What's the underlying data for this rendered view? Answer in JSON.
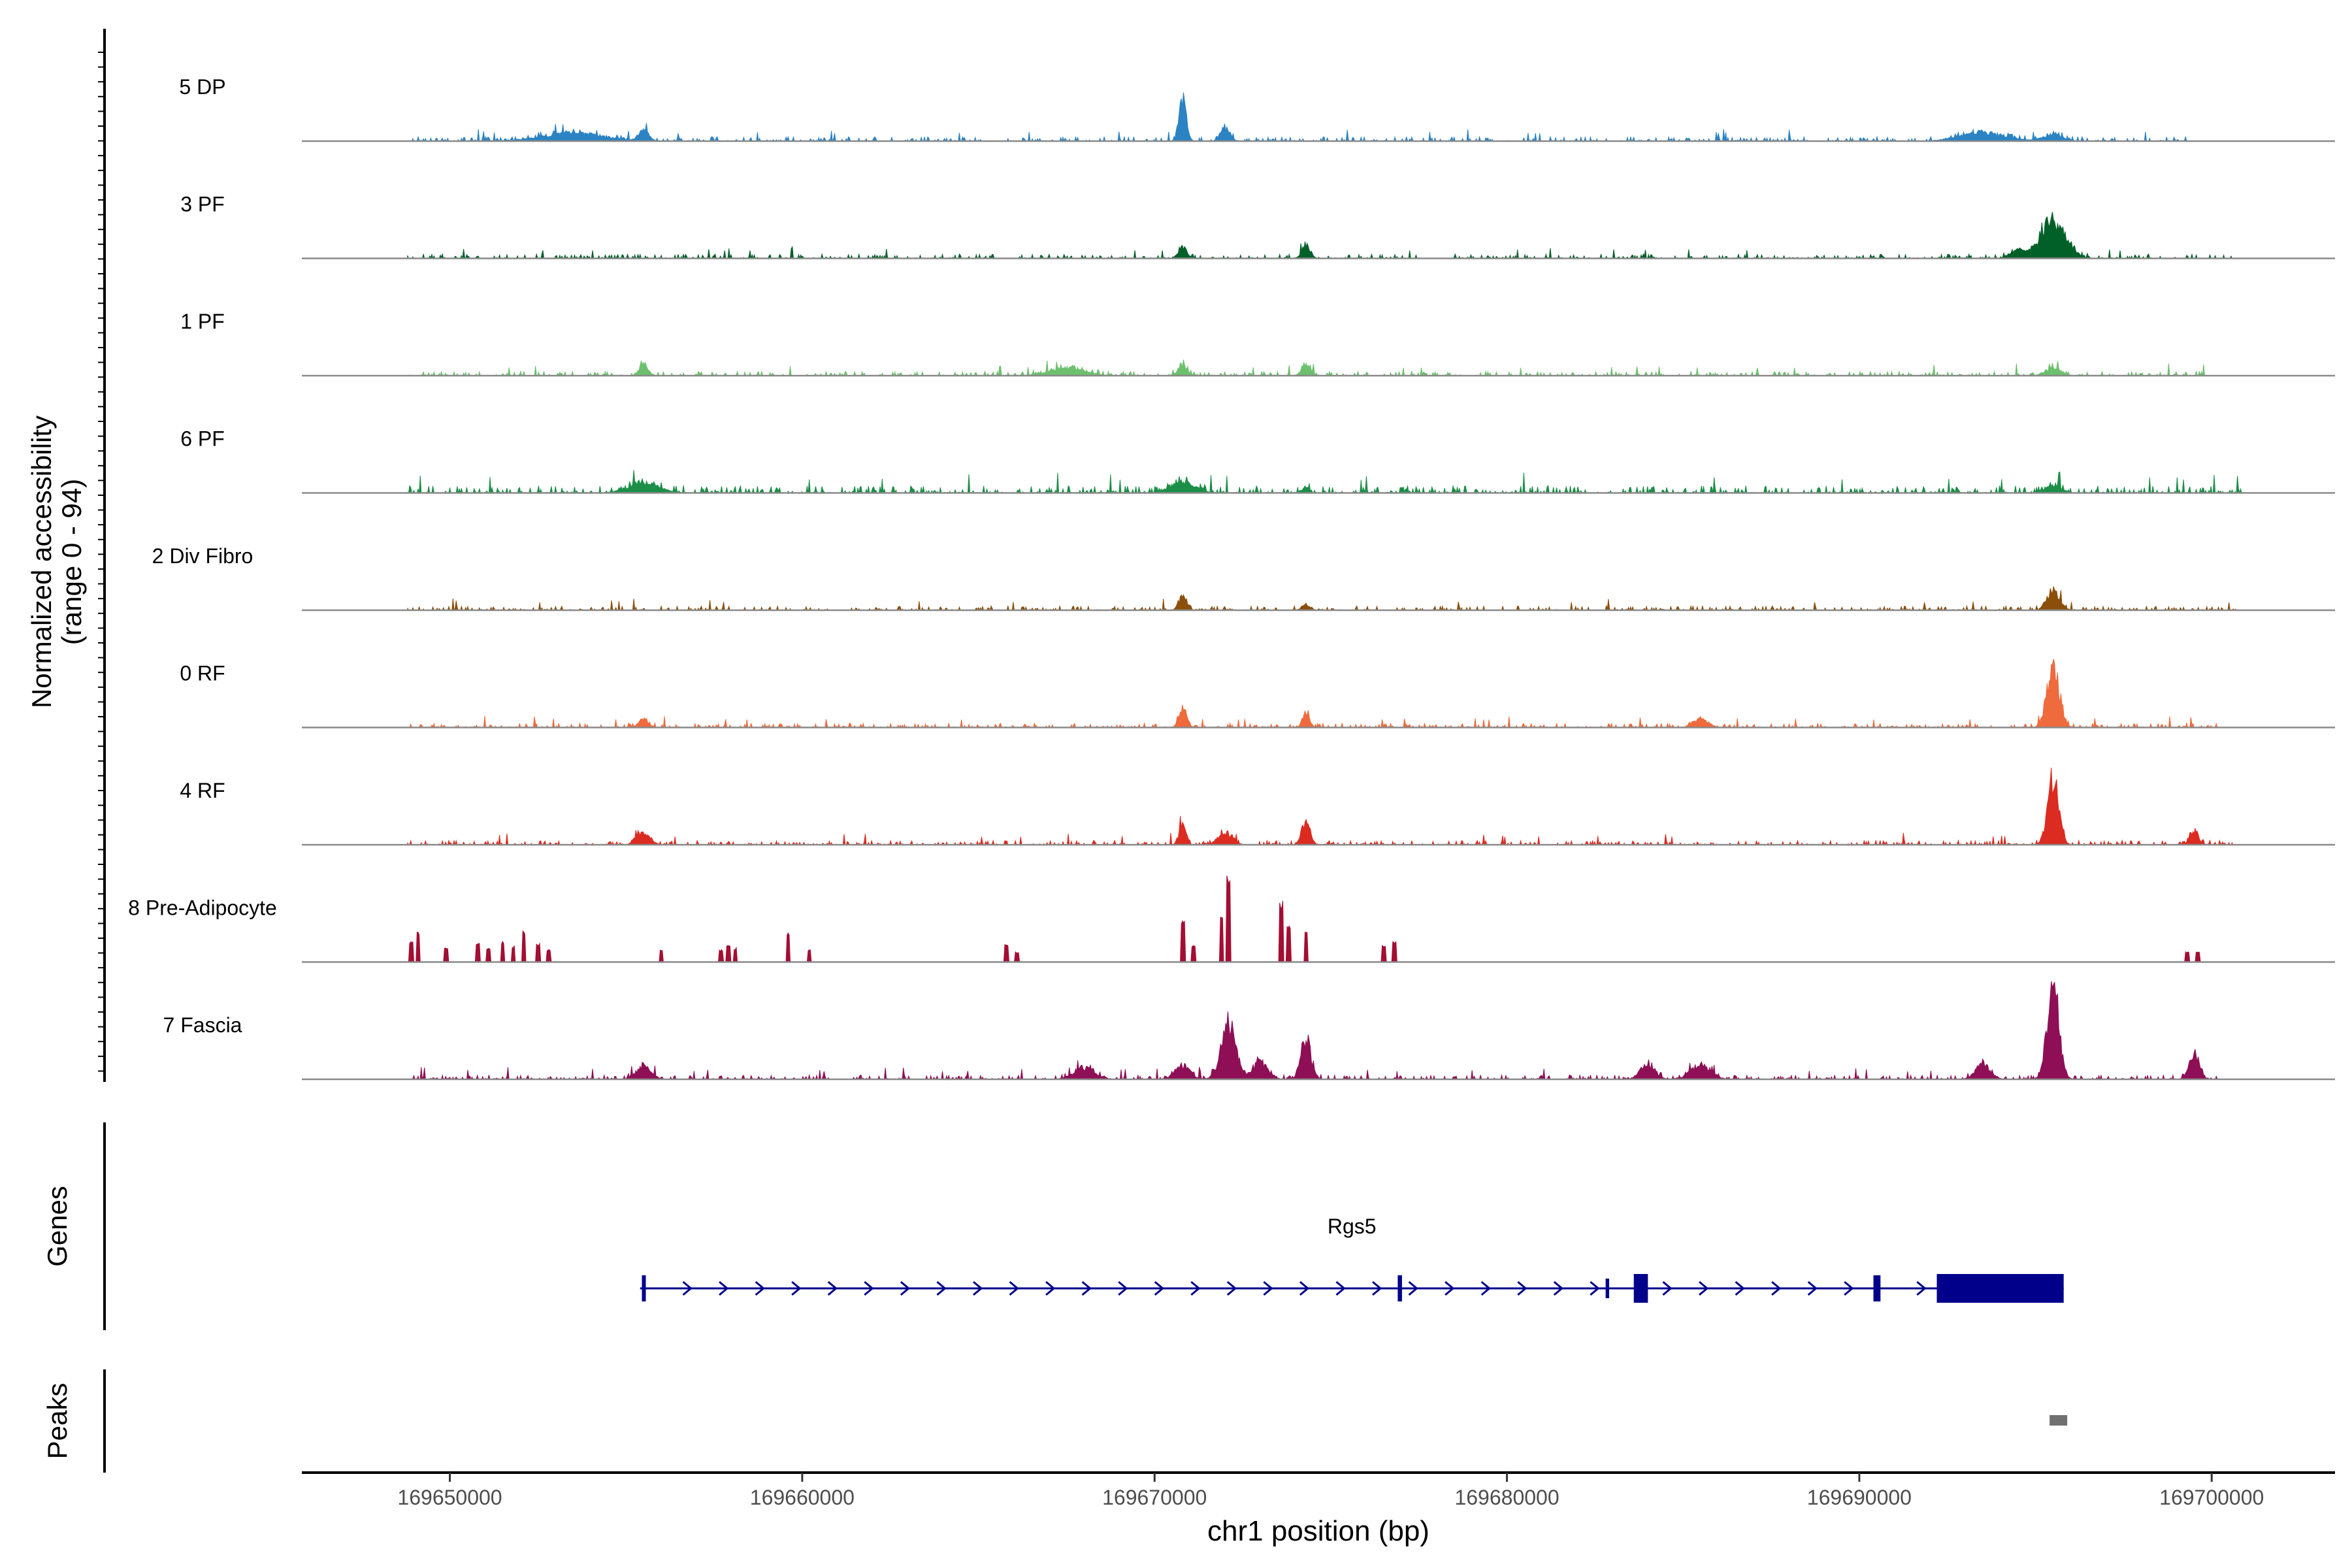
{
  "chart_data": {
    "type": "area",
    "title": "",
    "ylabel_line1": "Normalized accessibility",
    "ylabel_line2": "(range 0 - 94)",
    "xlabel": "chr1 position (bp)",
    "xlim": [
      169645800,
      169703500
    ],
    "xticks": [
      169650000,
      169660000,
      169670000,
      169680000,
      169690000,
      169700000
    ],
    "xtick_labels": [
      "169650000",
      "169660000",
      "169670000",
      "169680000",
      "169690000",
      "169700000"
    ],
    "y_range": [
      0,
      94
    ],
    "tracks": [
      {
        "name": "5 DP",
        "color": "#2b83c3",
        "data_start": 169648800,
        "data_end": 169699500,
        "peaks": [
          [
            169670800,
            40,
            140
          ],
          [
            169672000,
            14,
            180
          ],
          [
            169655500,
            10,
            200
          ],
          [
            169653500,
            8,
            1200
          ],
          [
            169693500,
            8,
            900
          ],
          [
            169695500,
            6,
            400
          ]
        ],
        "noise": 3,
        "seed": 11
      },
      {
        "name": "3 PF",
        "color": "#006028",
        "data_start": 169648800,
        "data_end": 169700600,
        "peaks": [
          [
            169695500,
            38,
            500
          ],
          [
            169674300,
            14,
            160
          ],
          [
            169670800,
            12,
            160
          ],
          [
            169694500,
            8,
            300
          ]
        ],
        "noise": 3,
        "seed": 23
      },
      {
        "name": "1 PF",
        "color": "#6cc06e",
        "data_start": 169648800,
        "data_end": 169699800,
        "peaks": [
          [
            169655500,
            12,
            180
          ],
          [
            169674300,
            12,
            180
          ],
          [
            169670800,
            10,
            200
          ],
          [
            169667500,
            8,
            700
          ],
          [
            169695500,
            8,
            300
          ]
        ],
        "noise": 3,
        "seed": 37
      },
      {
        "name": "6 PF",
        "color": "#1b8e47",
        "data_start": 169648800,
        "data_end": 169700900,
        "peaks": [
          [
            169655500,
            10,
            600
          ],
          [
            169670800,
            10,
            500
          ],
          [
            169695500,
            8,
            300
          ],
          [
            169674300,
            6,
            120
          ]
        ],
        "noise": 5,
        "seed": 41
      },
      {
        "name": "2 Div Fibro",
        "color": "#8b4f0a",
        "data_start": 169648800,
        "data_end": 169700800,
        "peaks": [
          [
            169695500,
            18,
            260
          ],
          [
            169670800,
            14,
            160
          ],
          [
            169674300,
            6,
            160
          ]
        ],
        "noise": 3,
        "seed": 53
      },
      {
        "name": "0 RF",
        "color": "#ef6a3c",
        "data_start": 169648800,
        "data_end": 169700200,
        "peaks": [
          [
            169695500,
            60,
            240
          ],
          [
            169670800,
            18,
            160
          ],
          [
            169674300,
            14,
            140
          ],
          [
            169655500,
            8,
            200
          ],
          [
            169685500,
            8,
            300
          ]
        ],
        "noise": 3,
        "seed": 67
      },
      {
        "name": "4 RF",
        "color": "#dc2b20",
        "data_start": 169648800,
        "data_end": 169700600,
        "peaks": [
          [
            169695500,
            66,
            220
          ],
          [
            169674300,
            24,
            160
          ],
          [
            169670800,
            18,
            140
          ],
          [
            169699500,
            14,
            160
          ],
          [
            169655500,
            12,
            260
          ],
          [
            169672000,
            12,
            280
          ]
        ],
        "noise": 3,
        "seed": 71
      },
      {
        "name": "8 Pre-Adipocyte",
        "color": "#a30e33",
        "data_start": 169648800,
        "data_end": 169700000,
        "bars": [
          [
            169648900,
            20
          ],
          [
            169649100,
            30
          ],
          [
            169649900,
            14
          ],
          [
            169650800,
            18
          ],
          [
            169651100,
            14
          ],
          [
            169651500,
            20
          ],
          [
            169651800,
            16
          ],
          [
            169652100,
            30
          ],
          [
            169652500,
            18
          ],
          [
            169652800,
            12
          ],
          [
            169656000,
            12
          ],
          [
            169657700,
            12
          ],
          [
            169657900,
            18
          ],
          [
            169658100,
            14
          ],
          [
            169659600,
            30
          ],
          [
            169660200,
            12
          ],
          [
            169665800,
            18
          ],
          [
            169666100,
            10
          ],
          [
            169670800,
            40
          ],
          [
            169671100,
            16
          ],
          [
            169671900,
            46
          ],
          [
            169672100,
            84
          ],
          [
            169673600,
            60
          ],
          [
            169673800,
            36
          ],
          [
            169674300,
            30
          ],
          [
            169676500,
            16
          ],
          [
            169676800,
            20
          ],
          [
            169699300,
            10
          ],
          [
            169699600,
            10
          ]
        ],
        "noise": 0,
        "seed": 83
      },
      {
        "name": "7 Fascia",
        "color": "#8e0f55",
        "data_start": 169648800,
        "data_end": 169700200,
        "peaks": [
          [
            169695500,
            90,
            240
          ],
          [
            169672100,
            54,
            300
          ],
          [
            169674300,
            40,
            200
          ],
          [
            169673000,
            16,
            300
          ],
          [
            169670800,
            14,
            300
          ],
          [
            169699500,
            24,
            200
          ],
          [
            169685500,
            14,
            400
          ],
          [
            169684000,
            14,
            300
          ],
          [
            169693500,
            14,
            300
          ],
          [
            169655500,
            12,
            300
          ],
          [
            169668000,
            12,
            400
          ]
        ],
        "noise": 3,
        "seed": 97
      }
    ],
    "genes_label": "Genes",
    "peaks_label": "Peaks",
    "gene": {
      "name": "Rgs5",
      "color": "#00008b",
      "start": 169655400,
      "end": 169695800,
      "strand": "+",
      "exons": [
        [
          169655450,
          169655560,
          "thin"
        ],
        [
          169676900,
          169677020,
          "thin"
        ],
        [
          169682800,
          169682900,
          "line"
        ],
        [
          169683600,
          169684000,
          "thick"
        ],
        [
          169690400,
          169690600,
          "thin"
        ],
        [
          169692200,
          169695800,
          "thick"
        ]
      ]
    },
    "peak_regions": [
      [
        169695400,
        169695900
      ]
    ],
    "peak_color": "#707070"
  }
}
